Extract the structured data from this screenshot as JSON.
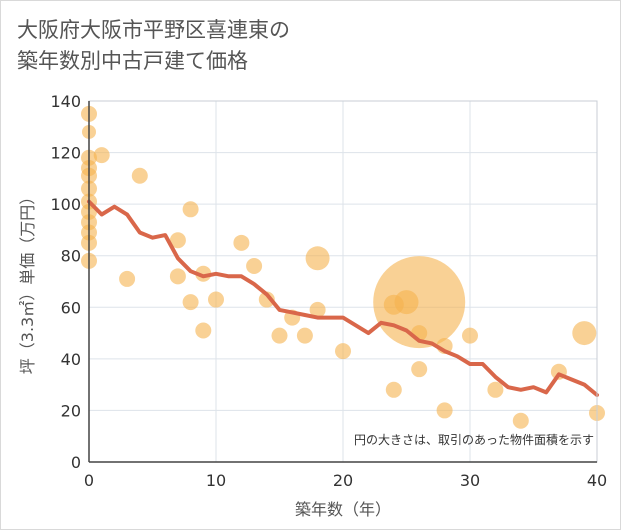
{
  "title_line1": "大阪府大阪市平野区喜連東の",
  "title_line2": "築年数別中古戸建て価格",
  "chart_data": {
    "type": "scatter",
    "xlabel": "築年数（年）",
    "ylabel": "坪（3.3㎡）単価（万円）",
    "xlim": [
      0,
      40
    ],
    "ylim": [
      0,
      140
    ],
    "x_ticks": [
      0,
      10,
      20,
      30,
      40
    ],
    "y_ticks": [
      0,
      20,
      40,
      60,
      80,
      100,
      120,
      140
    ],
    "note": "円の大きさは、取引のあった物件面積を示す",
    "colors": {
      "bubble": "#f5b24e",
      "line": "#d9674a",
      "grid": "#dde3ea",
      "axis": "#444444"
    },
    "scatter": [
      {
        "x": 0,
        "y": 135,
        "r": 8
      },
      {
        "x": 0,
        "y": 128,
        "r": 7
      },
      {
        "x": 0,
        "y": 118,
        "r": 8
      },
      {
        "x": 0,
        "y": 114,
        "r": 8
      },
      {
        "x": 0,
        "y": 111,
        "r": 8
      },
      {
        "x": 0,
        "y": 106,
        "r": 8
      },
      {
        "x": 0,
        "y": 101,
        "r": 8
      },
      {
        "x": 0,
        "y": 97,
        "r": 8
      },
      {
        "x": 0,
        "y": 93,
        "r": 8
      },
      {
        "x": 0,
        "y": 89,
        "r": 8
      },
      {
        "x": 0,
        "y": 85,
        "r": 8
      },
      {
        "x": 0,
        "y": 78,
        "r": 8
      },
      {
        "x": 1,
        "y": 119,
        "r": 8
      },
      {
        "x": 4,
        "y": 111,
        "r": 8
      },
      {
        "x": 3,
        "y": 71,
        "r": 8
      },
      {
        "x": 7,
        "y": 86,
        "r": 8
      },
      {
        "x": 7,
        "y": 72,
        "r": 8
      },
      {
        "x": 8,
        "y": 98,
        "r": 8
      },
      {
        "x": 8,
        "y": 62,
        "r": 8
      },
      {
        "x": 9,
        "y": 73,
        "r": 8
      },
      {
        "x": 9,
        "y": 51,
        "r": 8
      },
      {
        "x": 10,
        "y": 63,
        "r": 8
      },
      {
        "x": 12,
        "y": 85,
        "r": 8
      },
      {
        "x": 13,
        "y": 76,
        "r": 8
      },
      {
        "x": 14,
        "y": 63,
        "r": 8
      },
      {
        "x": 15,
        "y": 49,
        "r": 8
      },
      {
        "x": 16,
        "y": 56,
        "r": 8
      },
      {
        "x": 17,
        "y": 49,
        "r": 8
      },
      {
        "x": 18,
        "y": 79,
        "r": 12
      },
      {
        "x": 18,
        "y": 59,
        "r": 8
      },
      {
        "x": 20,
        "y": 43,
        "r": 8
      },
      {
        "x": 24,
        "y": 61,
        "r": 10
      },
      {
        "x": 25,
        "y": 62,
        "r": 12
      },
      {
        "x": 24,
        "y": 28,
        "r": 8
      },
      {
        "x": 26,
        "y": 62,
        "r": 46
      },
      {
        "x": 26,
        "y": 36,
        "r": 8
      },
      {
        "x": 26,
        "y": 50,
        "r": 8
      },
      {
        "x": 28,
        "y": 45,
        "r": 8
      },
      {
        "x": 28,
        "y": 20,
        "r": 8
      },
      {
        "x": 30,
        "y": 49,
        "r": 8
      },
      {
        "x": 32,
        "y": 28,
        "r": 8
      },
      {
        "x": 34,
        "y": 16,
        "r": 8
      },
      {
        "x": 37,
        "y": 35,
        "r": 8
      },
      {
        "x": 39,
        "y": 50,
        "r": 12
      },
      {
        "x": 40,
        "y": 19,
        "r": 8
      }
    ],
    "trend": {
      "x": [
        0,
        1,
        2,
        3,
        4,
        5,
        6,
        7,
        8,
        9,
        10,
        11,
        12,
        13,
        14,
        15,
        16,
        17,
        18,
        19,
        20,
        21,
        22,
        23,
        24,
        25,
        26,
        27,
        28,
        29,
        30,
        31,
        32,
        33,
        34,
        35,
        36,
        37,
        38,
        39,
        40
      ],
      "y": [
        101,
        96,
        99,
        96,
        89,
        87,
        88,
        79,
        74,
        72,
        73,
        72,
        72,
        69,
        65,
        59,
        58,
        57,
        56,
        56,
        56,
        53,
        50,
        54,
        53,
        51,
        47,
        46,
        43,
        41,
        38,
        38,
        33,
        29,
        28,
        29,
        27,
        34,
        32,
        30,
        26
      ]
    }
  }
}
